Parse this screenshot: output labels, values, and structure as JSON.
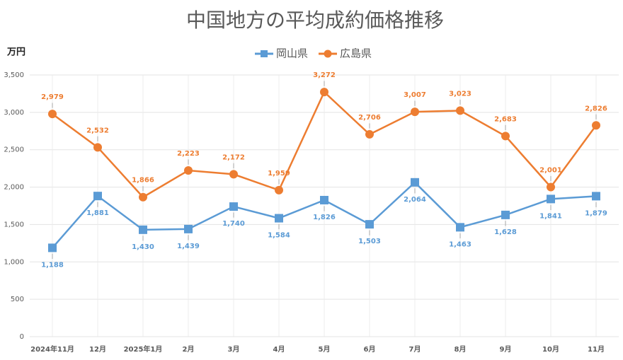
{
  "chart_data": {
    "type": "line",
    "title": "中国地方の平均成約価格推移",
    "y_label": "万円",
    "categories": [
      "2024年11月",
      "12月",
      "2025年1月",
      "2月",
      "3月",
      "4月",
      "5月",
      "6月",
      "7月",
      "8月",
      "9月",
      "10月",
      "11月"
    ],
    "series": [
      {
        "name": "岡山県",
        "color": "#5b9bd5",
        "marker": "square",
        "values": [
          1188,
          1881,
          1430,
          1439,
          1740,
          1584,
          1826,
          1503,
          2064,
          1463,
          1628,
          1841,
          1879
        ],
        "value_labels": [
          "1,188",
          "1,881",
          "1,430",
          "1,439",
          "1,740",
          "1,584",
          "1,826",
          "1,503",
          "2,064",
          "1,463",
          "1,628",
          "1,841",
          "1,879"
        ]
      },
      {
        "name": "広島県",
        "color": "#ed7d31",
        "marker": "circle",
        "values": [
          2979,
          2532,
          1866,
          2223,
          2172,
          1959,
          3272,
          2706,
          3007,
          3023,
          2683,
          2001,
          2826
        ],
        "value_labels": [
          "2,979",
          "2,532",
          "1,866",
          "2,223",
          "2,172",
          "1,959",
          "3,272",
          "2,706",
          "3,007",
          "3,023",
          "2,683",
          "2,001",
          "2,826"
        ]
      }
    ],
    "ylim": [
      0,
      3500
    ],
    "yticks": [
      0,
      500,
      {
        "value": 1000,
        "label": "1,000"
      },
      {
        "value": 1500,
        "label": "1,500"
      },
      {
        "value": 2000,
        "label": "2,000"
      },
      {
        "value": 2500,
        "label": "2,500"
      },
      {
        "value": 3000,
        "label": "3,000"
      },
      {
        "value": 3500,
        "label": "3,500"
      }
    ],
    "grid": true
  }
}
